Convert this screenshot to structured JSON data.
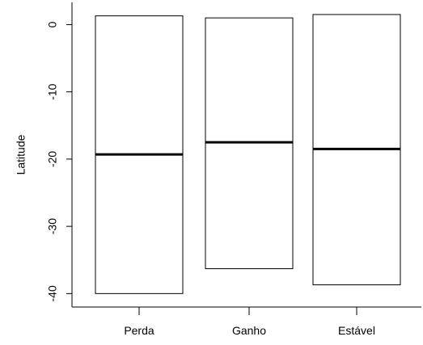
{
  "chart_data": {
    "type": "boxplot",
    "title": "",
    "xlabel": "",
    "ylabel": "Latitude",
    "ylim": [
      -42,
      3.3
    ],
    "yticks": [
      0,
      -10,
      -20,
      -30,
      -40
    ],
    "ytick_labels": [
      "0",
      "-10",
      "-20",
      "-30",
      "-40"
    ],
    "categories": [
      "Perda",
      "Ganho",
      "Estável"
    ],
    "boxes": [
      {
        "category": "Perda",
        "q1": -40,
        "median": -19.3,
        "q3": 1.3
      },
      {
        "category": "Ganho",
        "q1": -36.3,
        "median": -17.5,
        "q3": 1.0
      },
      {
        "category": "Estável",
        "q1": -38.7,
        "median": -18.5,
        "q3": 1.5
      }
    ],
    "grid": false,
    "legend": false
  }
}
